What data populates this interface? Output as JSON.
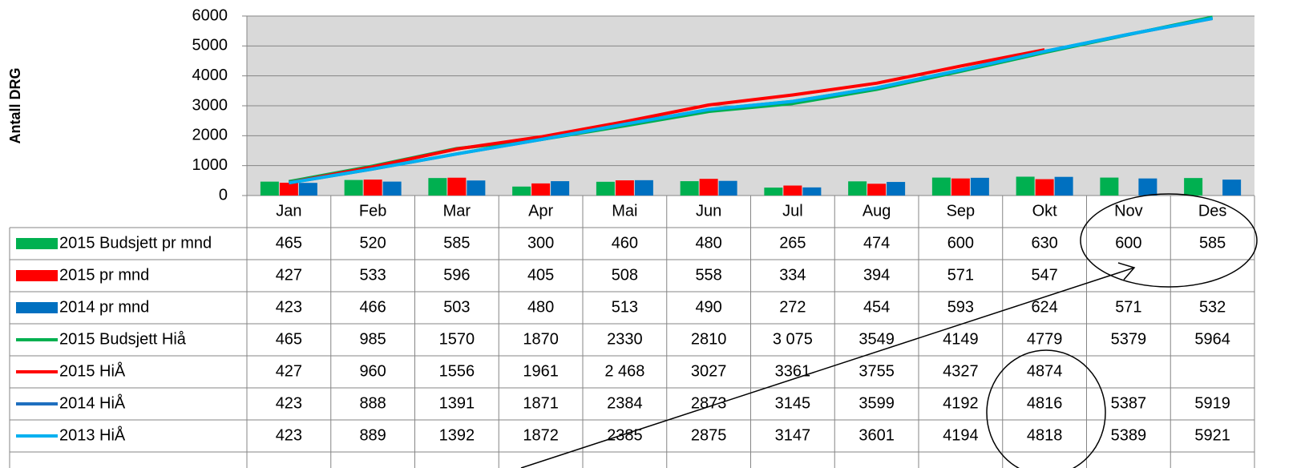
{
  "chart_data": {
    "type": "bar",
    "y_label": "Antall DRG",
    "categories": [
      "Jan",
      "Feb",
      "Mar",
      "Apr",
      "Mai",
      "Jun",
      "Jul",
      "Aug",
      "Sep",
      "Okt",
      "Nov",
      "Des"
    ],
    "ylim": [
      0,
      6000
    ],
    "yticks": [
      0,
      1000,
      2000,
      3000,
      4000,
      5000,
      6000
    ],
    "grid": true,
    "series": [
      {
        "name": "2015 Budsjett pr mnd",
        "type": "bar",
        "color": "#00b050",
        "values": [
          465,
          520,
          585,
          300,
          460,
          480,
          265,
          474,
          600,
          630,
          600,
          585
        ]
      },
      {
        "name": "2015 pr mnd",
        "type": "bar",
        "color": "#ff0000",
        "values": [
          427,
          533,
          596,
          405,
          508,
          558,
          334,
          394,
          571,
          547,
          null,
          null
        ]
      },
      {
        "name": "2014 pr mnd",
        "type": "bar",
        "color": "#0070c0",
        "values": [
          423,
          466,
          503,
          480,
          513,
          490,
          272,
          454,
          593,
          624,
          571,
          532
        ]
      },
      {
        "name": "2015 Budsjett Hiå",
        "type": "line",
        "color": "#00b050",
        "values": [
          465,
          985,
          1570,
          1870,
          2330,
          2810,
          3075,
          3549,
          4149,
          4779,
          5379,
          5964
        ],
        "value_labels": [
          "465",
          "985",
          "1570",
          "1870",
          "2330",
          "2810",
          "3 075",
          "3549",
          "4149",
          "4779",
          "5379",
          "5964"
        ]
      },
      {
        "name": "2015 HiÅ",
        "type": "line",
        "color": "#ff0000",
        "values": [
          427,
          960,
          1556,
          1961,
          2468,
          3027,
          3361,
          3755,
          4327,
          4874,
          null,
          null
        ],
        "value_labels": [
          "427",
          "960",
          "1556",
          "1961",
          "2 468",
          "3027",
          "3361",
          "3755",
          "4327",
          "4874",
          null,
          null
        ]
      },
      {
        "name": "2014 HiÅ",
        "type": "line",
        "color": "#1f6fbf",
        "values": [
          423,
          888,
          1391,
          1871,
          2384,
          2873,
          3145,
          3599,
          4192,
          4816,
          5387,
          5919
        ]
      },
      {
        "name": "2013 HiÅ",
        "type": "line",
        "color": "#00b0f0",
        "values": [
          423,
          889,
          1392,
          1872,
          2385,
          2875,
          3147,
          3601,
          4194,
          4818,
          5389,
          5921
        ]
      }
    ]
  }
}
